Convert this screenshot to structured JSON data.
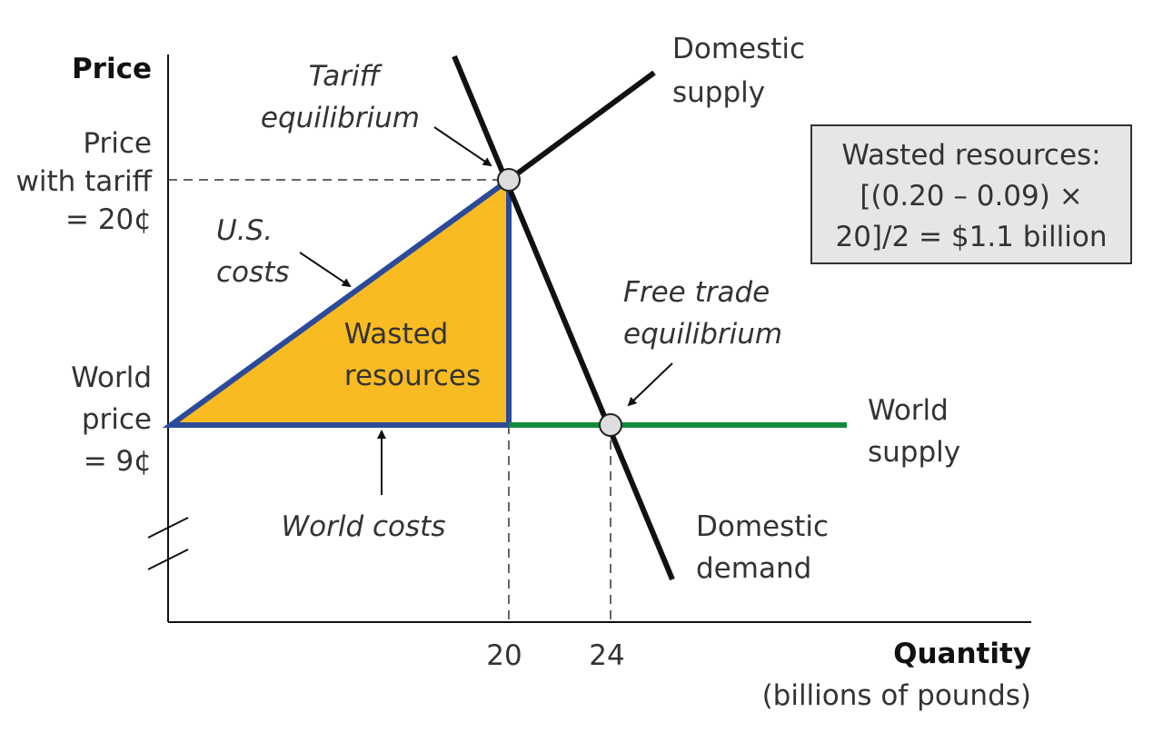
{
  "y_axis": {
    "title": "Price",
    "labels": [
      [
        "Price",
        "with tariff",
        "= 20¢"
      ],
      [
        "World",
        "price",
        "= 9¢"
      ]
    ]
  },
  "x_axis": {
    "title": "Quantity",
    "subtitle": "(billions of pounds)",
    "ticks": [
      "20",
      "24"
    ]
  },
  "annotations": {
    "tariff_equilibrium": [
      "Tariff",
      "equilibrium"
    ],
    "domestic_supply": [
      "Domestic",
      "supply"
    ],
    "us_costs": [
      "U.S.",
      "costs"
    ],
    "wasted_resources": [
      "Wasted",
      "resources"
    ],
    "free_trade_equilibrium": [
      "Free trade",
      "equilibrium"
    ],
    "world_supply": [
      "World",
      "supply"
    ],
    "world_costs": "World costs",
    "domestic_demand": [
      "Domestic",
      "demand"
    ]
  },
  "box": {
    "lines": [
      "Wasted resources:",
      "[(0.20 – 0.09)  ×",
      "20]/2 = $1.1 billion"
    ]
  }
}
